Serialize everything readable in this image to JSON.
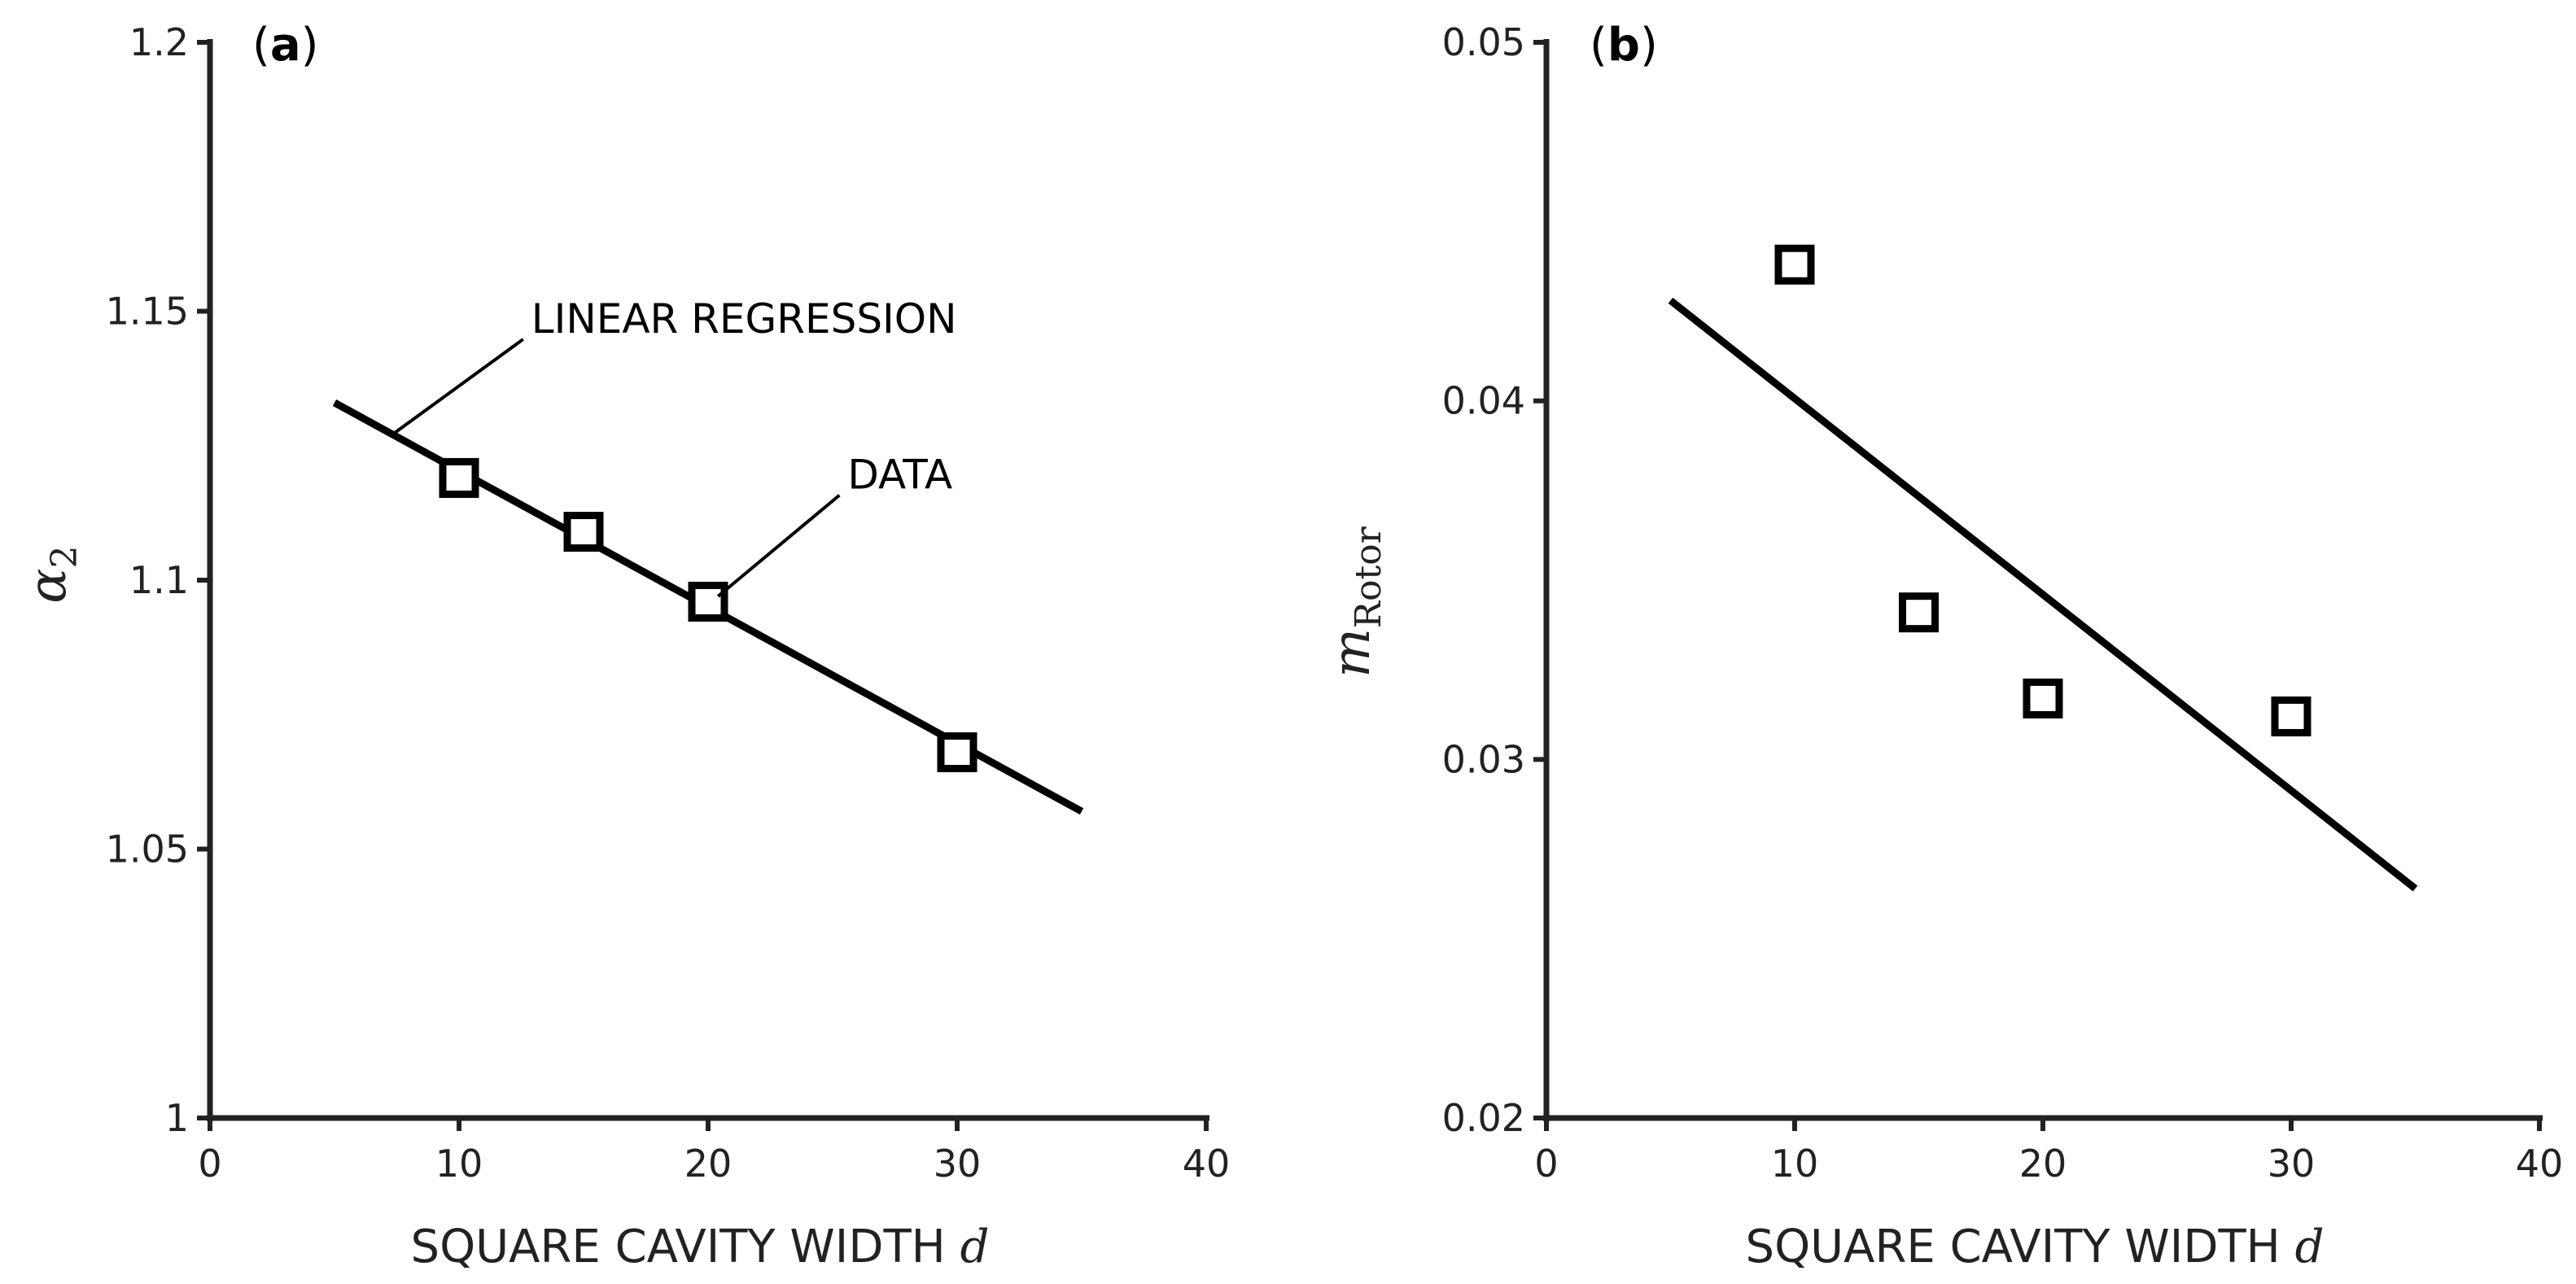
{
  "colors": {
    "axis": "#222222",
    "line": "#000000",
    "marker": "#000000",
    "background": "#ffffff"
  },
  "chart_data": [
    {
      "type": "scatter",
      "panel_label": "a",
      "xlabel": "SQUARE CAVITY WIDTH",
      "xvar": "d",
      "ylabel": "α",
      "ylabel_sub": "2",
      "xlim": [
        0,
        40
      ],
      "ylim": [
        1,
        1.2
      ],
      "xticks": [
        0,
        10,
        20,
        30,
        40
      ],
      "xtick_labels": [
        "0",
        "10",
        "20",
        "30",
        "40"
      ],
      "yticks": [
        1,
        1.05,
        1.1,
        1.15,
        1.2
      ],
      "ytick_labels": [
        "1",
        "1.05",
        "1.1",
        "1.15",
        "1.2"
      ],
      "series": [
        {
          "name": "DATA",
          "kind": "markers",
          "marker": "open-square",
          "x": [
            10,
            15,
            20,
            30
          ],
          "y": [
            1.119,
            1.109,
            1.096,
            1.068
          ]
        },
        {
          "name": "LINEAR REGRESSION",
          "kind": "line",
          "x": [
            5,
            35
          ],
          "y": [
            1.133,
            1.057
          ]
        }
      ],
      "annotations": [
        {
          "text": "LINEAR REGRESSION",
          "pointer_to": [
            7.3,
            1.127
          ],
          "text_at": [
            12.9,
            1.146
          ]
        },
        {
          "text": "DATA",
          "pointer_to": [
            20.4,
            1.097
          ],
          "text_at": [
            25.6,
            1.117
          ]
        }
      ]
    },
    {
      "type": "scatter",
      "panel_label": "b",
      "xlabel": "SQUARE CAVITY WIDTH",
      "xvar": "d",
      "ylabel": "m",
      "ylabel_sub": "Rotor",
      "xlim": [
        0,
        40
      ],
      "ylim": [
        0.02,
        0.05
      ],
      "xticks": [
        0,
        10,
        20,
        30,
        40
      ],
      "xtick_labels": [
        "0",
        "10",
        "20",
        "30",
        "40"
      ],
      "yticks": [
        0.02,
        0.03,
        0.04,
        0.05
      ],
      "ytick_labels": [
        "0.02",
        "0.03",
        "0.04",
        "0.05"
      ],
      "series": [
        {
          "name": "DATA",
          "kind": "markers",
          "marker": "open-square",
          "x": [
            10,
            15,
            20,
            30
          ],
          "y": [
            0.0438,
            0.0341,
            0.0317,
            0.0312
          ]
        },
        {
          "name": "LINEAR REGRESSION",
          "kind": "line",
          "x": [
            5,
            35
          ],
          "y": [
            0.0428,
            0.0264
          ]
        }
      ],
      "annotations": []
    }
  ]
}
